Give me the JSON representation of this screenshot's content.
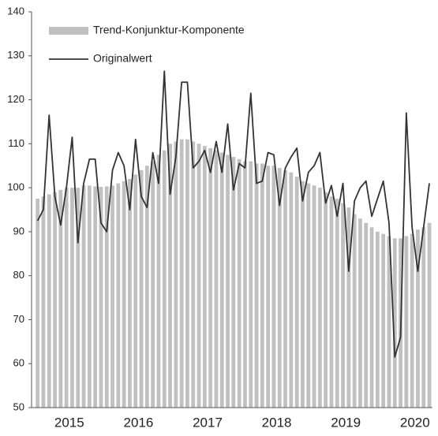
{
  "chart_data": {
    "type": "combo",
    "categories": [
      null,
      null,
      null,
      null,
      null,
      "2015",
      null,
      null,
      null,
      null,
      null,
      null,
      null,
      null,
      null,
      null,
      null,
      "2016",
      null,
      null,
      null,
      null,
      null,
      null,
      null,
      null,
      null,
      null,
      null,
      "2017",
      null,
      null,
      null,
      null,
      null,
      null,
      null,
      null,
      null,
      null,
      null,
      "2018",
      null,
      null,
      null,
      null,
      null,
      null,
      null,
      null,
      null,
      null,
      null,
      "2019",
      null,
      null,
      null,
      null,
      null,
      null,
      null,
      null,
      null,
      null,
      null,
      "2020",
      null,
      null,
      null
    ],
    "series": [
      {
        "name": "Trend-Konjunktur-Komponente",
        "kind": "bar",
        "color": "#c0c0c0",
        "values": [
          97.5,
          98,
          98.5,
          99,
          99.5,
          100,
          100,
          100,
          100.5,
          100.5,
          100.3,
          100.2,
          100.3,
          100.5,
          101,
          101.5,
          102,
          103,
          104,
          105,
          106,
          107.5,
          108.5,
          110,
          110.5,
          111,
          111,
          110.5,
          110,
          109.5,
          109,
          108.5,
          108,
          107.5,
          107,
          106.5,
          106,
          106,
          105.5,
          105.5,
          105,
          105,
          104.5,
          104,
          103.5,
          102.5,
          101.5,
          101,
          100.5,
          100,
          99,
          98,
          97.5,
          96.5,
          95.5,
          94,
          93,
          92,
          91,
          90,
          89.5,
          89,
          88.5,
          88.5,
          89,
          89.5,
          90.5,
          91,
          92
        ]
      },
      {
        "name": "Originalwert",
        "kind": "line",
        "color": "#333333",
        "values": [
          92.5,
          95,
          116.5,
          98,
          91.5,
          100,
          111.5,
          87.5,
          101,
          106.5,
          106.5,
          92,
          90,
          104,
          108,
          105,
          95,
          111,
          98,
          95.5,
          108,
          101,
          126.5,
          98.5,
          107,
          124,
          124,
          104.5,
          106,
          108.5,
          103.5,
          110.5,
          103.5,
          114.5,
          99.5,
          105.5,
          104.5,
          121.5,
          101,
          101.5,
          108,
          107.5,
          96,
          104.5,
          107,
          109,
          97,
          103.5,
          105,
          108,
          96.5,
          100.5,
          93.5,
          101,
          81,
          97,
          100,
          101.5,
          93.5,
          97.5,
          101.5,
          92,
          61.5,
          66,
          117,
          91,
          81,
          91,
          101
        ]
      }
    ],
    "ylim": [
      50,
      140
    ],
    "yticks": [
      50,
      60,
      70,
      80,
      90,
      100,
      110,
      120,
      130,
      140
    ],
    "grid": false,
    "legend": "top-left"
  }
}
